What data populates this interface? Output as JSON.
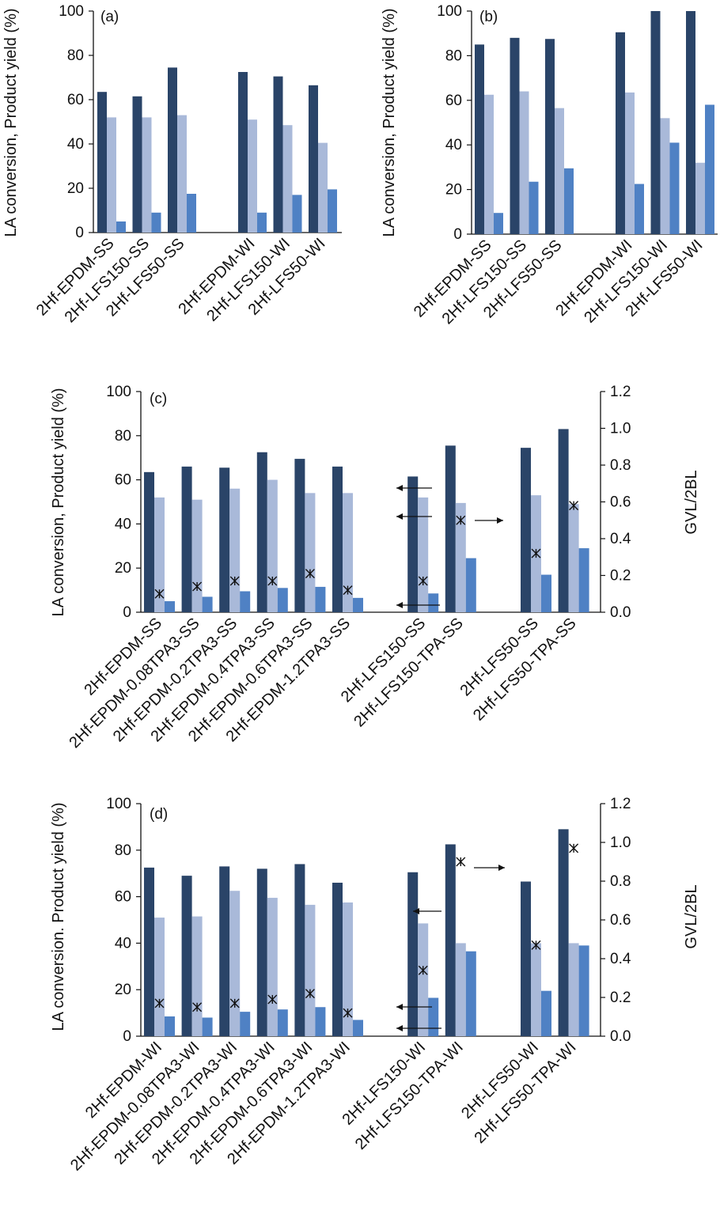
{
  "colors": {
    "conversion": "#2a4468",
    "yield_light": "#a9b9d9",
    "yield_mid": "#4f81c4",
    "axis": "#111111",
    "marker": "#111111"
  },
  "chart_data": [
    {
      "id": "a",
      "type": "bar",
      "panel_label": "(a)",
      "ylabel": "LA conversion, Product yield (%)",
      "ylim": [
        0,
        100
      ],
      "yticks": [
        "0",
        "20",
        "40",
        "60",
        "80",
        "100"
      ],
      "categories": [
        "2Hf-EPDM-SS",
        "2Hf-LFS150-SS",
        "2Hf-LFS50-SS",
        "",
        "2Hf-EPDM-WI",
        "2Hf-LFS150-WI",
        "2Hf-LFS50-WI"
      ],
      "series": [
        {
          "color_key": "conversion",
          "values": [
            63.5,
            61.5,
            74.5,
            null,
            72.5,
            70.5,
            66.5
          ]
        },
        {
          "color_key": "yield_light",
          "values": [
            52,
            52,
            53,
            null,
            51,
            48.5,
            40.5
          ]
        },
        {
          "color_key": "yield_mid",
          "values": [
            5,
            9,
            17.5,
            null,
            9,
            17,
            19.5
          ]
        }
      ],
      "grid": false
    },
    {
      "id": "b",
      "type": "bar",
      "panel_label": "(b)",
      "ylabel": "LA conversion, Product yield (%)",
      "ylim": [
        0,
        100
      ],
      "yticks": [
        "0",
        "20",
        "40",
        "60",
        "80",
        "100"
      ],
      "categories": [
        "2Hf-EPDM-SS",
        "2Hf-LFS150-SS",
        "2Hf-LFS50-SS",
        "",
        "2Hf-EPDM-WI",
        "2Hf-LFS150-WI",
        "2Hf-LFS50-WI"
      ],
      "series": [
        {
          "color_key": "conversion",
          "values": [
            85,
            88,
            87.5,
            null,
            90.5,
            100,
            100
          ]
        },
        {
          "color_key": "yield_light",
          "values": [
            62.5,
            64,
            56.5,
            null,
            63.5,
            52,
            32
          ]
        },
        {
          "color_key": "yield_mid",
          "values": [
            9.5,
            23.5,
            29.5,
            null,
            22.5,
            41,
            58
          ]
        }
      ],
      "grid": false
    },
    {
      "id": "c",
      "type": "bar",
      "panel_label": "(c)",
      "ylabel": "LA conversion, Product yield (%)",
      "y2label": "GVL/2BL",
      "ylim": [
        0,
        100
      ],
      "y2lim": [
        0,
        1.2
      ],
      "yticks": [
        "0",
        "20",
        "40",
        "60",
        "80",
        "100"
      ],
      "y2ticks": [
        "0.0",
        "0.2",
        "0.4",
        "0.6",
        "0.8",
        "1.0",
        "1.2"
      ],
      "categories": [
        "2Hf-EPDM-SS",
        "2Hf-EPDM-0.08TPA3-SS",
        "2Hf-EPDM-0.2TPA3-SS",
        "2Hf-EPDM-0.4TPA3-SS",
        "2Hf-EPDM-0.6TPA3-SS",
        "2Hf-EPDM-1.2TPA3-SS",
        "",
        "2Hf-LFS150-SS",
        "2Hf-LFS150-TPA-SS",
        "",
        "2Hf-LFS50-SS",
        "2Hf-LFS50-TPA-SS"
      ],
      "series": [
        {
          "color_key": "conversion",
          "values": [
            63.5,
            66,
            65.5,
            72.5,
            69.5,
            66,
            null,
            61.5,
            75.5,
            null,
            74.5,
            83
          ]
        },
        {
          "color_key": "yield_light",
          "values": [
            52,
            51,
            56,
            60,
            54,
            54,
            null,
            52,
            49.5,
            null,
            53,
            49
          ]
        },
        {
          "color_key": "yield_mid",
          "values": [
            5,
            7,
            9.5,
            11,
            11.5,
            6.5,
            null,
            8.5,
            24.5,
            null,
            17,
            29
          ]
        }
      ],
      "ratio": [
        0.1,
        0.14,
        0.17,
        0.17,
        0.21,
        0.12,
        null,
        0.17,
        0.5,
        null,
        0.32,
        0.58
      ],
      "annotations": [
        "left-arrow",
        "left-arrow",
        "left-arrow",
        "right-arrow"
      ],
      "grid": false
    },
    {
      "id": "d",
      "type": "bar",
      "panel_label": "(d)",
      "ylabel": "LA conversion. Product yield (%)",
      "y2label": "GVL/2BL",
      "ylim": [
        0,
        100
      ],
      "y2lim": [
        0,
        1.2
      ],
      "yticks": [
        "0",
        "20",
        "40",
        "60",
        "80",
        "100"
      ],
      "y2ticks": [
        "0.0",
        "0.2",
        "0.4",
        "0.6",
        "0.8",
        "1.0",
        "1.2"
      ],
      "categories": [
        "2Hf-EPDM-WI",
        "2Hf-EPDM-0.08TPA3-WI",
        "2Hf-EPDM-0.2TPA3-WI",
        "2Hf-EPDM-0.4TPA3-WI",
        "2Hf-EPDM-0.6TPA3-WI",
        "2Hf-EPDM-1.2TPA3-WI",
        "",
        "2Hf-LFS150-WI",
        "2Hf-LFS150-TPA-WI",
        "",
        "2Hf-LFS50-WI",
        "2Hf-LFS50-TPA-WI"
      ],
      "series": [
        {
          "color_key": "conversion",
          "values": [
            72.5,
            69,
            73,
            72,
            74,
            66,
            null,
            70.5,
            82.5,
            null,
            66.5,
            89
          ]
        },
        {
          "color_key": "yield_light",
          "values": [
            51,
            51.5,
            62.5,
            59.5,
            56.5,
            57.5,
            null,
            48.5,
            40,
            null,
            40,
            40
          ]
        },
        {
          "color_key": "yield_mid",
          "values": [
            8.5,
            8,
            10.5,
            11.5,
            12.5,
            7,
            null,
            16.5,
            36.5,
            null,
            19.5,
            39
          ]
        }
      ],
      "ratio": [
        0.17,
        0.15,
        0.17,
        0.19,
        0.22,
        0.12,
        null,
        0.34,
        0.9,
        null,
        0.47,
        0.97
      ],
      "annotations": [
        "left-arrow",
        "left-arrow",
        "left-arrow",
        "right-arrow"
      ],
      "grid": false
    }
  ]
}
